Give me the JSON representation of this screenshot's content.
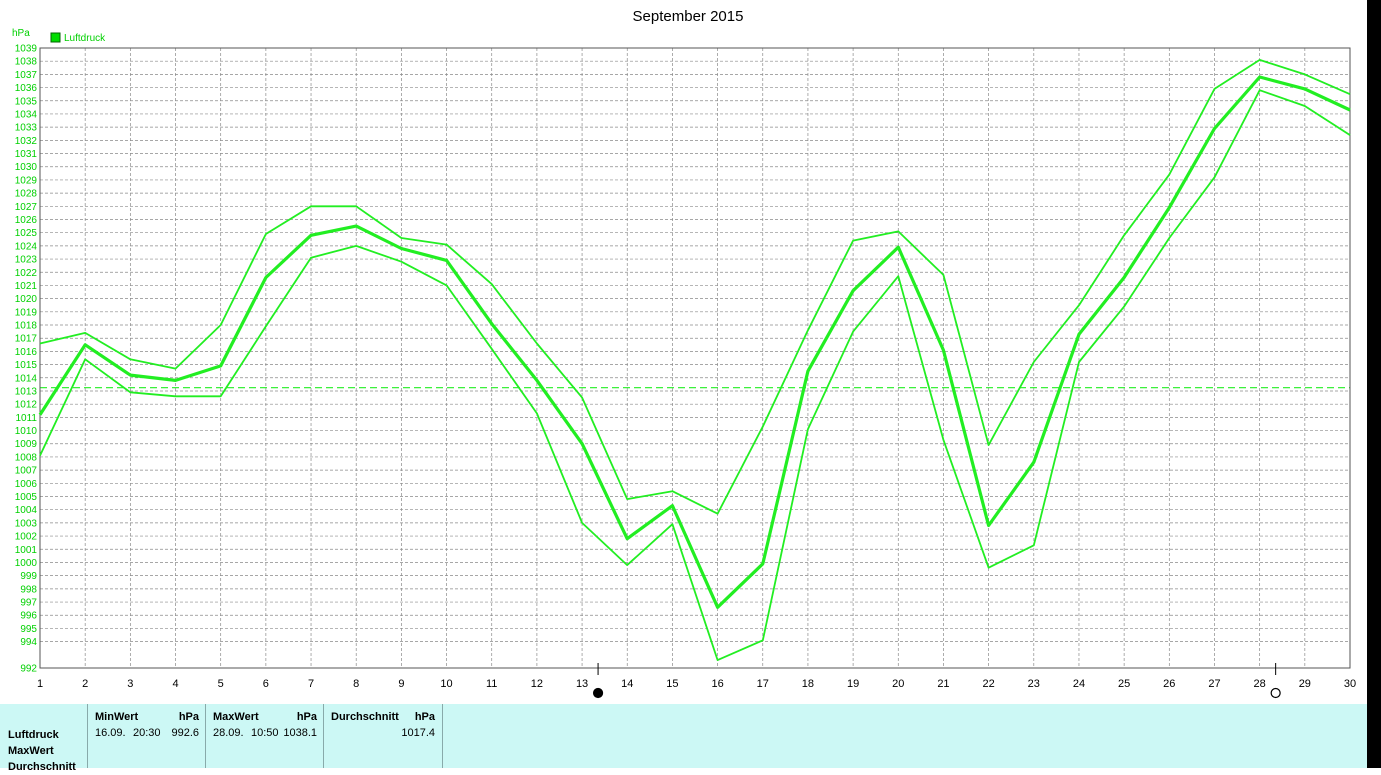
{
  "chart_data": {
    "type": "line",
    "title": "September 2015",
    "ylabel": "hPa",
    "legend": "Luftdruck",
    "legend_color": "#00dd00",
    "line_color": "#22ee22",
    "ylim": [
      992,
      1039
    ],
    "categories": [
      "1",
      "2",
      "3",
      "4",
      "5",
      "6",
      "7",
      "8",
      "9",
      "10",
      "11",
      "12",
      "13",
      "14",
      "15",
      "16",
      "17",
      "18",
      "19",
      "20",
      "21",
      "22",
      "23",
      "24",
      "25",
      "26",
      "27",
      "28",
      "29",
      "30"
    ],
    "yticks": [
      "992",
      "994",
      "995",
      "996",
      "997",
      "998",
      "999",
      "1000",
      "1001",
      "1002",
      "1003",
      "1004",
      "1005",
      "1006",
      "1007",
      "1008",
      "1009",
      "1010",
      "1011",
      "1012",
      "1013",
      "1014",
      "1015",
      "1016",
      "1017",
      "1018",
      "1019",
      "1020",
      "1021",
      "1022",
      "1023",
      "1024",
      "1025",
      "1026",
      "1027",
      "1028",
      "1029",
      "1030",
      "1031",
      "1032",
      "1033",
      "1034",
      "1035",
      "1036",
      "1037",
      "1038",
      "1039"
    ],
    "reference_line": 1013.25,
    "series": [
      {
        "values": [
          1016.6,
          1017.4,
          1015.4,
          1014.7,
          1018.0,
          1024.9,
          1027.0,
          1027.0,
          1024.6,
          1024.1,
          1021.1,
          1016.6,
          1012.5,
          1004.8,
          1005.4,
          1003.7,
          1010.3,
          1017.6,
          1024.4,
          1025.1,
          1021.8,
          1008.9,
          1015.2,
          1019.5,
          1024.8,
          1029.4,
          1035.9,
          1038.1,
          1037.0,
          1035.5
        ]
      },
      {
        "values": [
          1011.2,
          1016.5,
          1014.2,
          1013.8,
          1014.9,
          1021.6,
          1024.8,
          1025.5,
          1023.8,
          1022.9,
          1018.1,
          1013.8,
          1009.0,
          1001.8,
          1004.3,
          996.6,
          999.9,
          1014.5,
          1020.6,
          1023.9,
          1016.1,
          1002.8,
          1007.6,
          1017.3,
          1021.6,
          1026.9,
          1032.9,
          1036.8,
          1035.9,
          1034.3
        ]
      },
      {
        "values": [
          1008.1,
          1015.4,
          1012.9,
          1012.6,
          1012.6,
          1017.9,
          1023.1,
          1024.0,
          1022.8,
          1021.0,
          1016.2,
          1011.3,
          1003.0,
          999.8,
          1002.9,
          992.6,
          994.1,
          1010.1,
          1017.5,
          1021.7,
          1009.3,
          999.6,
          1001.3,
          1015.2,
          1019.4,
          1024.6,
          1029.2,
          1035.8,
          1034.6,
          1032.4
        ]
      }
    ],
    "markers": [
      "13",
      "28"
    ]
  },
  "stats": {
    "row_labels": [
      "Luftdruck",
      "MaxWert",
      "Durchschnitt"
    ],
    "min": {
      "title": "MinWert",
      "unit": "hPa",
      "date": "16.09.",
      "time": "20:30",
      "value": "992.6"
    },
    "max": {
      "title": "MaxWert",
      "unit": "hPa",
      "date": "28.09.",
      "time": "10:50",
      "value": "1038.1"
    },
    "avg": {
      "title": "Durchschnitt",
      "unit": "hPa",
      "value": "1017.4"
    }
  }
}
